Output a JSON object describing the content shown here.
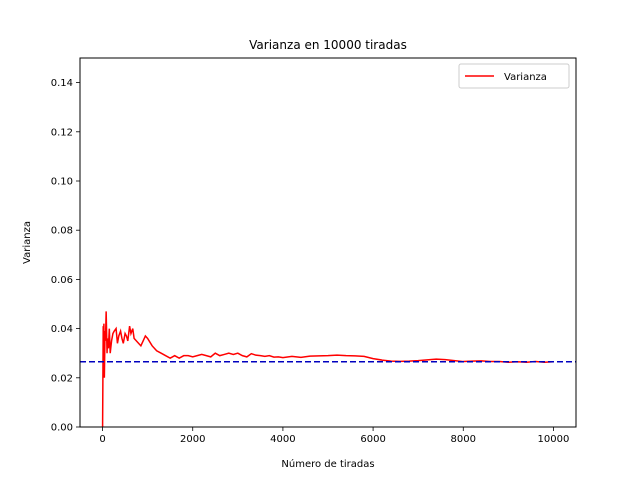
{
  "chart_data": {
    "type": "line",
    "title": "Varianza en 10000 tiradas",
    "xlabel": "Número de tiradas",
    "ylabel": "Varianza",
    "xlim": [
      -500,
      10500
    ],
    "ylim": [
      0.0,
      0.15
    ],
    "xticks": [
      0,
      2000,
      4000,
      6000,
      8000,
      10000
    ],
    "xtick_labels": [
      "0",
      "2000",
      "4000",
      "6000",
      "8000",
      "10000"
    ],
    "yticks": [
      0.0,
      0.02,
      0.04,
      0.06,
      0.08,
      0.1,
      0.12,
      0.14
    ],
    "ytick_labels": [
      "0.00",
      "0.02",
      "0.04",
      "0.06",
      "0.08",
      "0.10",
      "0.12",
      "0.14"
    ],
    "grid": false,
    "legend_position": "top-right",
    "series": [
      {
        "name": "Varianza",
        "color": "#ff0000",
        "style": "solid",
        "x": [
          1,
          15,
          20,
          30,
          40,
          55,
          65,
          80,
          100,
          110,
          130,
          150,
          170,
          200,
          230,
          260,
          300,
          330,
          360,
          400,
          430,
          460,
          500,
          530,
          560,
          600,
          630,
          670,
          700,
          750,
          800,
          850,
          900,
          950,
          1000,
          1100,
          1200,
          1300,
          1400,
          1500,
          1600,
          1700,
          1800,
          1900,
          2000,
          2100,
          2200,
          2300,
          2400,
          2500,
          2600,
          2700,
          2800,
          2900,
          3000,
          3100,
          3200,
          3300,
          3400,
          3500,
          3600,
          3700,
          3800,
          3900,
          4000,
          4200,
          4400,
          4600,
          4800,
          5000,
          5200,
          5400,
          5600,
          5800,
          6000,
          6200,
          6400,
          6600,
          6800,
          7000,
          7200,
          7400,
          7600,
          7800,
          8000,
          8200,
          8400,
          8600,
          8800,
          9000,
          9200,
          9400,
          9600,
          9800,
          10000
        ],
        "y": [
          0.0,
          0.041,
          0.035,
          0.042,
          0.02,
          0.039,
          0.035,
          0.047,
          0.03,
          0.036,
          0.032,
          0.04,
          0.03,
          0.035,
          0.038,
          0.039,
          0.04,
          0.034,
          0.037,
          0.039,
          0.036,
          0.034,
          0.038,
          0.037,
          0.035,
          0.041,
          0.038,
          0.04,
          0.036,
          0.035,
          0.034,
          0.033,
          0.035,
          0.037,
          0.036,
          0.033,
          0.031,
          0.03,
          0.029,
          0.028,
          0.029,
          0.028,
          0.029,
          0.029,
          0.0285,
          0.029,
          0.0295,
          0.029,
          0.0285,
          0.03,
          0.029,
          0.0295,
          0.03,
          0.0295,
          0.03,
          0.029,
          0.0285,
          0.0298,
          0.0292,
          0.029,
          0.0287,
          0.029,
          0.0284,
          0.0285,
          0.0282,
          0.0287,
          0.0283,
          0.0288,
          0.0289,
          0.029,
          0.0292,
          0.029,
          0.0289,
          0.0287,
          0.0278,
          0.0272,
          0.0268,
          0.0267,
          0.0268,
          0.027,
          0.0273,
          0.0276,
          0.0274,
          0.027,
          0.0266,
          0.0268,
          0.0269,
          0.0266,
          0.0266,
          0.0263,
          0.0265,
          0.0263,
          0.0266,
          0.0263,
          0.0265
        ]
      },
      {
        "name": "",
        "color": "#0000bf",
        "style": "dashed",
        "x": [
          -500,
          10500
        ],
        "y": [
          0.0265,
          0.0265
        ]
      }
    ]
  }
}
